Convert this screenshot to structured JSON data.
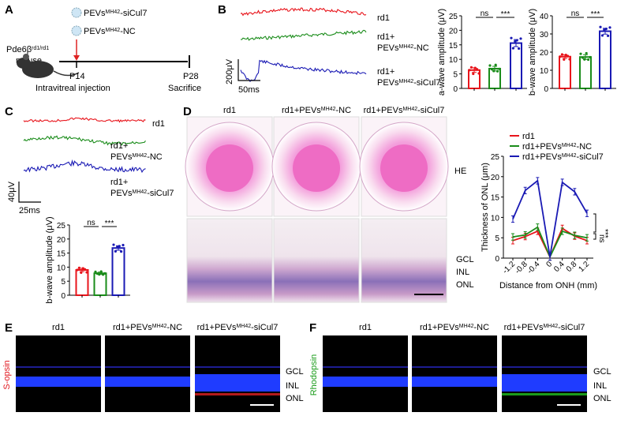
{
  "panels": {
    "A": "A",
    "B": "B",
    "C": "C",
    "D": "D",
    "E": "E",
    "F": "F"
  },
  "labels": {
    "rd1": "rd1",
    "rd1_plus": "rd1+",
    "pevs": "PEVs",
    "mh42": "MH42",
    "nc": "-NC",
    "sicul7": "-siCul7",
    "mouse_gene": "Pde6β",
    "mouse_sup": "rd1/rd1",
    "mouse": "mouse",
    "p14": "P14",
    "injection": "Intravitreal injection",
    "p28": "P28",
    "sacrifice": "Sacrifice",
    "scale_b_v": "200μV",
    "scale_b_t": "50ms",
    "scale_c_v": "40μV",
    "scale_c_t": "25ms",
    "he": "HE",
    "gcl": "GCL",
    "inl": "INL",
    "onl": "ONL",
    "s_opsin": "S-opsin",
    "rhodopsin": "Rhodopsin",
    "ns": "ns",
    "sig": "***"
  },
  "colors": {
    "rd1": "#e8141b",
    "nc": "#1a8c1a",
    "sicul7": "#1a1ab4",
    "s_opsin": "#e0141b",
    "rhodopsin": "#1a9c1a"
  },
  "chart_data": [
    {
      "id": "B-a",
      "type": "bar",
      "title": "",
      "ylabel": "a-wave amplitude (μV)",
      "categories": [
        "rd1",
        "rd1+PEVs-NC",
        "rd1+PEVs-siCul7"
      ],
      "values": [
        6.3,
        6.8,
        15.6
      ],
      "errors": [
        0.8,
        0.8,
        1.2
      ],
      "ylim": [
        0,
        25
      ],
      "yticks": [
        0,
        5,
        10,
        15,
        20,
        25
      ],
      "annotations": [
        "ns",
        "***"
      ]
    },
    {
      "id": "B-b",
      "type": "bar",
      "title": "",
      "ylabel": "b-wave amplitude (μV)",
      "categories": [
        "rd1",
        "rd1+PEVs-NC",
        "rd1+PEVs-siCul7"
      ],
      "values": [
        17.5,
        17.3,
        31.5
      ],
      "errors": [
        1.0,
        1.3,
        1.6
      ],
      "ylim": [
        0,
        40
      ],
      "yticks": [
        0,
        10,
        20,
        30,
        40
      ],
      "annotations": [
        "ns",
        "***"
      ]
    },
    {
      "id": "C-b",
      "type": "bar",
      "title": "",
      "ylabel": "b-wave amplitude (μV)",
      "categories": [
        "rd1",
        "rd1+PEVs-NC",
        "rd1+PEVs-siCul7"
      ],
      "values": [
        9.0,
        7.8,
        16.8
      ],
      "errors": [
        0.6,
        0.4,
        0.8
      ],
      "ylim": [
        0,
        25
      ],
      "yticks": [
        0,
        5,
        10,
        15,
        20,
        25
      ],
      "annotations": [
        "ns",
        "***"
      ]
    },
    {
      "id": "D-line",
      "type": "line",
      "xlabel": "Distance from ONH (mm)",
      "ylabel": "Thickness of ONL (μm)",
      "x": [
        -1.2,
        -0.8,
        -0.4,
        0,
        0.4,
        0.8,
        1.2
      ],
      "xticks": [
        "-1.2",
        "-0.8",
        "-0.4",
        "0",
        "0.4",
        "0.8",
        "1.2"
      ],
      "ylim": [
        0,
        25
      ],
      "yticks": [
        0,
        5,
        10,
        15,
        20,
        25
      ],
      "legend": "top",
      "series": [
        {
          "name": "rd1",
          "values": [
            4.3,
            5.3,
            6.6,
            0.3,
            7.3,
            5.4,
            4.3
          ]
        },
        {
          "name": "rd1+PEVsMH42-NC",
          "values": [
            5.2,
            5.7,
            7.6,
            0.3,
            6.6,
            5.6,
            5.0
          ]
        },
        {
          "name": "rd1+PEVsMH42-siCul7",
          "values": [
            9.6,
            16.6,
            19.0,
            0.3,
            18.6,
            16.3,
            11.0
          ]
        }
      ],
      "annotations": [
        "***",
        "ns"
      ]
    }
  ]
}
